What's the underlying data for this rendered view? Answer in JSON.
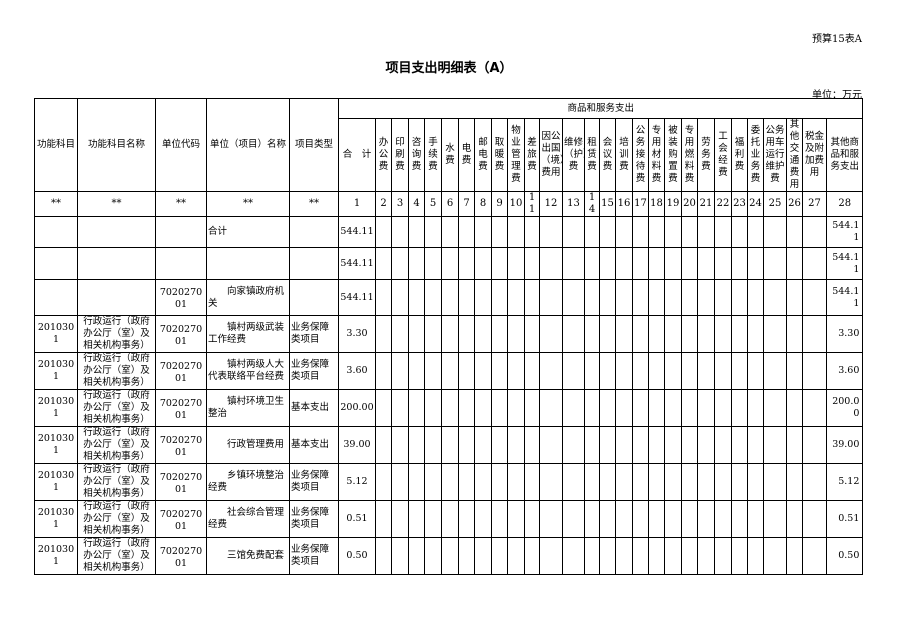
{
  "form_no": "预算15表A",
  "title": "项目支出明细表（A）",
  "unit": "单位：万元",
  "header": {
    "left": [
      "功能科目",
      "功能科目名称",
      "单位代码",
      "单位（项目）名称",
      "项目类型"
    ],
    "group": "商品和服务支出",
    "cols": [
      "合　计",
      "办公费",
      "印刷费",
      "咨询费",
      "手续费",
      "水费",
      "电费",
      "邮电费",
      "取暖费",
      "物业管理费",
      "差旅费",
      "因公出国（境）费用",
      "维修（护）费",
      "租赁费",
      "会议费",
      "培训费",
      "公务接待费",
      "专用材料费",
      "被装购置费",
      "专用燃料费",
      "劳务费",
      "工会经费",
      "福利费",
      "委托业务费",
      "公务用车运行维护费",
      "其他交通费用",
      "税金及附加费用",
      "其他商品和服务支出"
    ],
    "markers": [
      "**",
      "**",
      "**",
      "**",
      "**"
    ],
    "numbers": [
      "1",
      "2",
      "3",
      "4",
      "5",
      "6",
      "7",
      "8",
      "9",
      "10",
      "11",
      "12",
      "13",
      "14",
      "15",
      "16",
      "17",
      "18",
      "19",
      "20",
      "21",
      "22",
      "23",
      "24",
      "25",
      "26",
      "27",
      "28"
    ]
  },
  "rows": [
    {
      "code": "",
      "name": "",
      "unit_code": "",
      "unit_name": "合计",
      "type": "",
      "total": "544.11",
      "other": "544.11"
    },
    {
      "code": "",
      "name": "",
      "unit_code": "",
      "unit_name": "",
      "type": "",
      "total": "544.11",
      "other": "544.11"
    },
    {
      "code": "",
      "name": "",
      "unit_code": "702027001",
      "unit_name": "向家镇政府机关",
      "type": "",
      "total": "544.11",
      "other": "544.11"
    },
    {
      "code": "2010301",
      "name": "行政运行（政府办公厅（室）及相关机构事务）",
      "unit_code": "702027001",
      "unit_name": "镇村两级武装工作经费",
      "type": "业务保障类项目",
      "total": "3.30",
      "other": "3.30"
    },
    {
      "code": "2010301",
      "name": "行政运行（政府办公厅（室）及相关机构事务）",
      "unit_code": "702027001",
      "unit_name": "镇村两级人大代表联络平台经费",
      "type": "业务保障类项目",
      "total": "3.60",
      "other": "3.60"
    },
    {
      "code": "2010301",
      "name": "行政运行（政府办公厅（室）及相关机构事务）",
      "unit_code": "702027001",
      "unit_name": "镇村环境卫生整治",
      "type": "基本支出",
      "total": "200.00",
      "other": "200.00"
    },
    {
      "code": "2010301",
      "name": "行政运行（政府办公厅（室）及相关机构事务）",
      "unit_code": "702027001",
      "unit_name": "行政管理费用",
      "type": "基本支出",
      "total": "39.00",
      "other": "39.00"
    },
    {
      "code": "2010301",
      "name": "行政运行（政府办公厅（室）及相关机构事务）",
      "unit_code": "702027001",
      "unit_name": "乡镇环境整治经费",
      "type": "业务保障类项目",
      "total": "5.12",
      "other": "5.12"
    },
    {
      "code": "2010301",
      "name": "行政运行（政府办公厅（室）及相关机构事务）",
      "unit_code": "702027001",
      "unit_name": "社会综合管理经费",
      "type": "业务保障类项目",
      "total": "0.51",
      "other": "0.51"
    },
    {
      "code": "2010301",
      "name": "行政运行（政府办公厅（室）及相关机构事务）",
      "unit_code": "702027001",
      "unit_name": "三馆免费配套",
      "type": "业务保障类项目",
      "total": "0.50",
      "other": "0.50"
    }
  ]
}
